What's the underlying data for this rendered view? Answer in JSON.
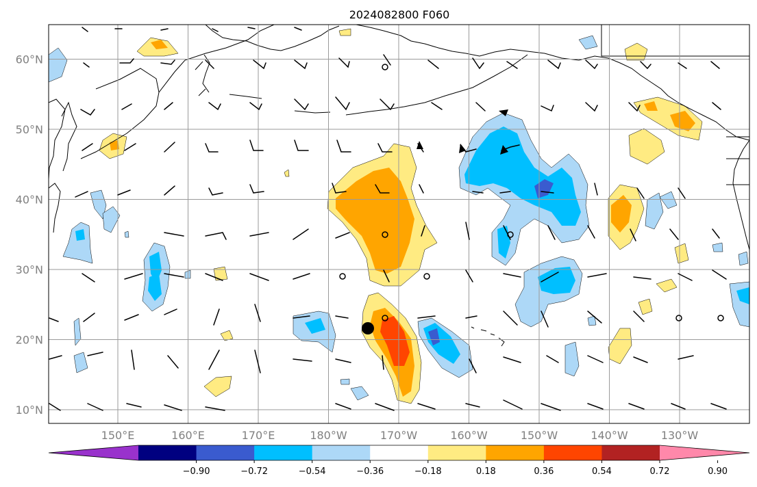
{
  "title": "2024082800 F060",
  "map": {
    "lat_labels": [
      "10°N",
      "20°N",
      "30°N",
      "40°N",
      "50°N",
      "60°N"
    ],
    "lat_values": [
      10,
      20,
      30,
      40,
      50,
      60
    ],
    "lon_labels": [
      "150°E",
      "160°E",
      "170°E",
      "180°W",
      "170°W",
      "160°W",
      "150°W",
      "140°W",
      "130°W"
    ],
    "lon_values": [
      150,
      160,
      170,
      180,
      190,
      200,
      210,
      220,
      230
    ],
    "grid": true,
    "fill_colors": {
      "strong_negative": "#0000ff",
      "neg_054": "#3a5bcf",
      "neg_036": "#00bfff",
      "neg_018": "#add8f7",
      "pos_018": "#ffeb82",
      "pos_036": "#ffa500",
      "pos_054": "#ff4500"
    }
  },
  "colorbar": {
    "colors": [
      "#9932cc",
      "#000080",
      "#3a5bcf",
      "#00bfff",
      "#add8f7",
      "#ffffff",
      "#ffeb82",
      "#ffa500",
      "#ff4500",
      "#b22222",
      "#ff88aa"
    ],
    "tick_labels": [
      "−0.90",
      "−0.72",
      "−0.54",
      "−0.36",
      "−0.18",
      "0.18",
      "0.36",
      "0.54",
      "0.72",
      "0.90"
    ]
  }
}
